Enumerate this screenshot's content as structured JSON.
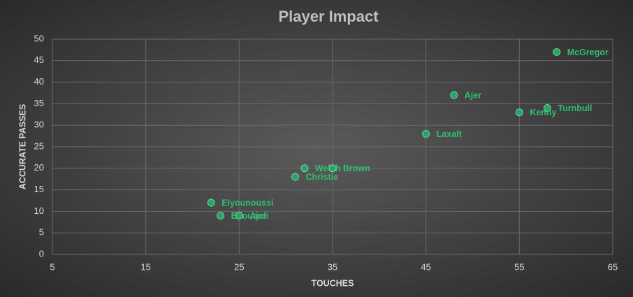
{
  "chart_data": {
    "type": "scatter",
    "title": "Player Impact",
    "x_label": "TOUCHES",
    "y_label": "ACCURATE PASSES",
    "color": "#1fa866",
    "grid": true,
    "xlim": [
      5,
      65
    ],
    "xticks": [
      5,
      15,
      25,
      35,
      45,
      55,
      65
    ],
    "ylim": [
      0,
      50
    ],
    "yticks": [
      0,
      5,
      10,
      15,
      20,
      25,
      30,
      35,
      40,
      45,
      50
    ],
    "labels": [
      "McGregor",
      "Ajer",
      "Turnbull",
      "Kenny",
      "Laxalt",
      "Welsh",
      "Brown",
      "Christie",
      "Elyounoussi",
      "Edouard",
      "Ajeti"
    ],
    "x": [
      59,
      48,
      58,
      55,
      45,
      32,
      35,
      31,
      22,
      23,
      25
    ],
    "values": [
      47,
      37,
      34,
      33,
      28,
      20,
      20,
      18,
      12,
      9,
      9
    ]
  }
}
